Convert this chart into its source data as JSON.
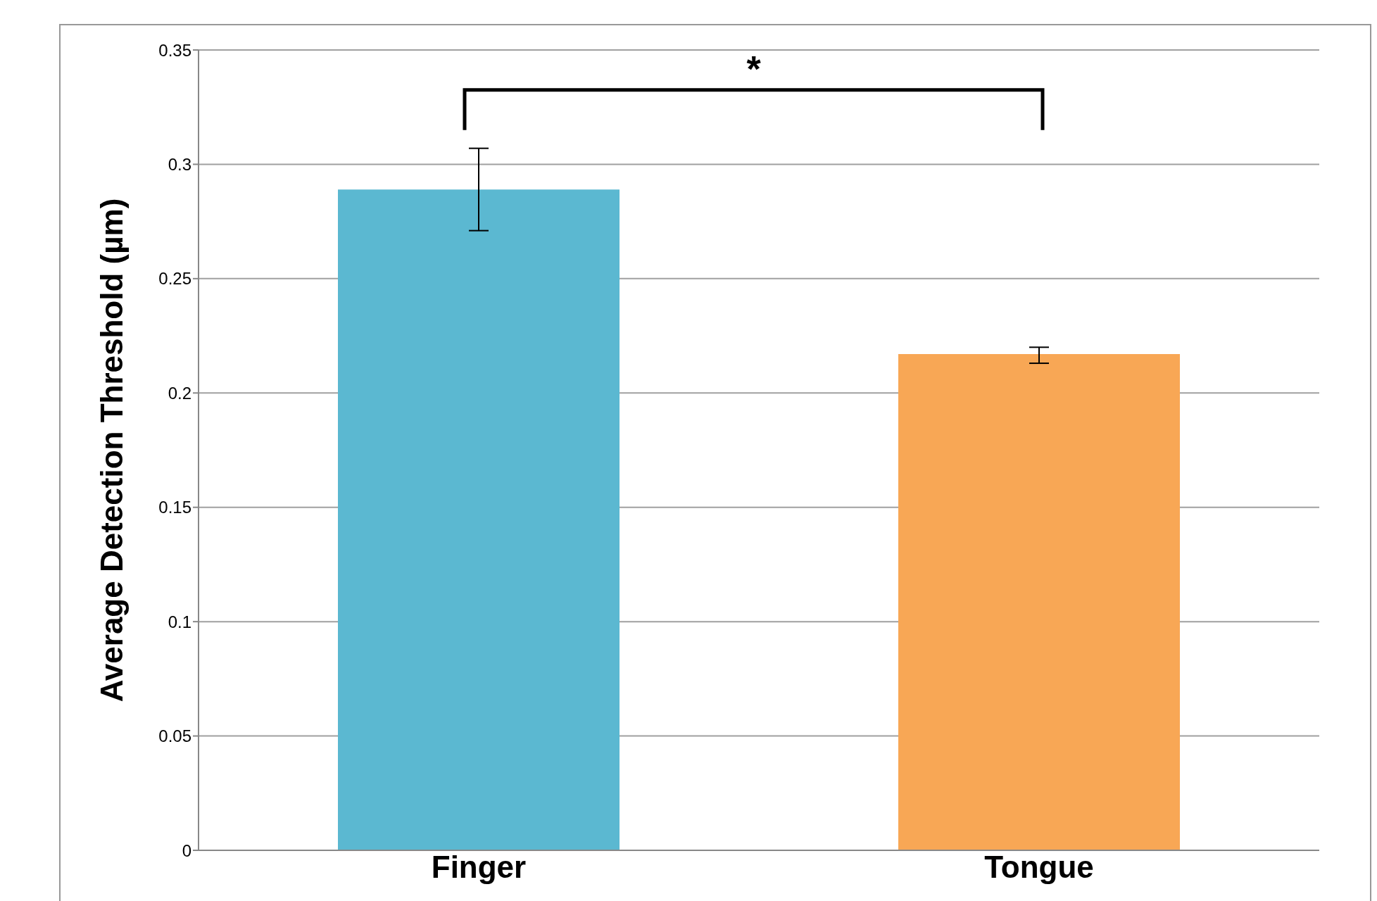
{
  "chart_data": {
    "type": "bar",
    "ylabel": "Average Detection Threshold (µm)",
    "categories": [
      "Finger",
      "Tongue"
    ],
    "values": [
      0.289,
      0.217
    ],
    "colors": [
      "#5bb8d1",
      "#f8a755"
    ],
    "errors": [
      [
        0.271,
        0.307
      ],
      [
        0.213,
        0.22
      ]
    ],
    "ylim": [
      0,
      0.35
    ],
    "yticks": [
      0,
      0.05,
      0.1,
      0.15,
      0.2,
      0.25,
      0.3,
      0.35
    ],
    "grid": "y",
    "legend": false,
    "annotations": [
      "*"
    ]
  }
}
